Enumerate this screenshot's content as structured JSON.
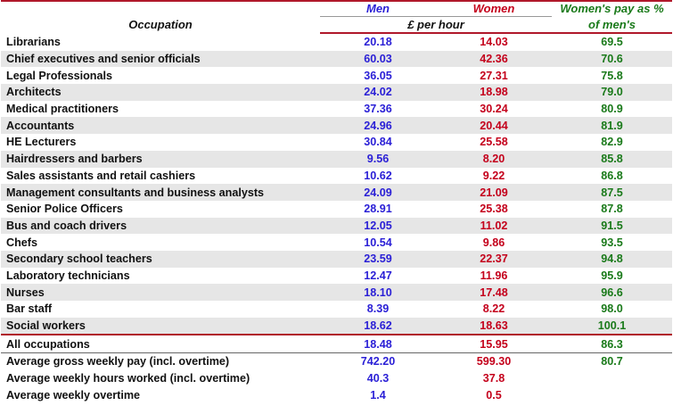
{
  "header": {
    "occupation": "Occupation",
    "men": "Men",
    "women": "Women",
    "pct_line1": "Women's pay as %",
    "pct_line2": "of men's",
    "unit": "£ per hour"
  },
  "rows": [
    {
      "occupation": "Librarians",
      "men": "20.18",
      "women": "14.03",
      "pct": "69.5"
    },
    {
      "occupation": "Chief executives and senior officials",
      "men": "60.03",
      "women": "42.36",
      "pct": "70.6"
    },
    {
      "occupation": "Legal Professionals",
      "men": "36.05",
      "women": "27.31",
      "pct": "75.8"
    },
    {
      "occupation": "Architects",
      "men": "24.02",
      "women": "18.98",
      "pct": "79.0"
    },
    {
      "occupation": "Medical practitioners",
      "men": "37.36",
      "women": "30.24",
      "pct": "80.9"
    },
    {
      "occupation": "Accountants",
      "men": "24.96",
      "women": "20.44",
      "pct": "81.9"
    },
    {
      "occupation": "HE Lecturers",
      "men": "30.84",
      "women": "25.58",
      "pct": "82.9"
    },
    {
      "occupation": "Hairdressers and barbers",
      "men": "9.56",
      "women": "8.20",
      "pct": "85.8"
    },
    {
      "occupation": "Sales assistants and retail cashiers",
      "men": "10.62",
      "women": "9.22",
      "pct": "86.8"
    },
    {
      "occupation": "Management consultants and business analysts",
      "men": "24.09",
      "women": "21.09",
      "pct": "87.5"
    },
    {
      "occupation": "Senior Police Officers",
      "men": "28.91",
      "women": "25.38",
      "pct": "87.8"
    },
    {
      "occupation": "Bus and coach drivers",
      "men": "12.05",
      "women": "11.02",
      "pct": "91.5"
    },
    {
      "occupation": "Chefs",
      "men": "10.54",
      "women": "9.86",
      "pct": "93.5"
    },
    {
      "occupation": "Secondary school teachers",
      "men": "23.59",
      "women": "22.37",
      "pct": "94.8"
    },
    {
      "occupation": "Laboratory technicians",
      "men": "12.47",
      "women": "11.96",
      "pct": "95.9"
    },
    {
      "occupation": "Nurses",
      "men": "18.10",
      "women": "17.48",
      "pct": "96.6"
    },
    {
      "occupation": "Bar staff",
      "men": "8.39",
      "women": "8.22",
      "pct": "98.0"
    },
    {
      "occupation": "Social workers",
      "men": "18.62",
      "women": "18.63",
      "pct": "100.1"
    }
  ],
  "total": {
    "occupation": "All occupations",
    "men": "18.48",
    "women": "15.95",
    "pct": "86.3"
  },
  "footer": [
    {
      "label": "Average gross weekly pay (incl. overtime)",
      "men": "742.20",
      "women": "599.30",
      "pct": "80.7"
    },
    {
      "label": "Average weekly hours worked (incl. overtime)",
      "men": "40.3",
      "women": "37.8",
      "pct": ""
    },
    {
      "label": "Average weekly overtime",
      "men": "1.4",
      "women": "0.5",
      "pct": ""
    }
  ],
  "colors": {
    "men": "#2a1fd6",
    "women": "#c4001b",
    "pct": "#1a7a1a",
    "rule": "#b0182a",
    "stripe": "#e6e6e6"
  }
}
